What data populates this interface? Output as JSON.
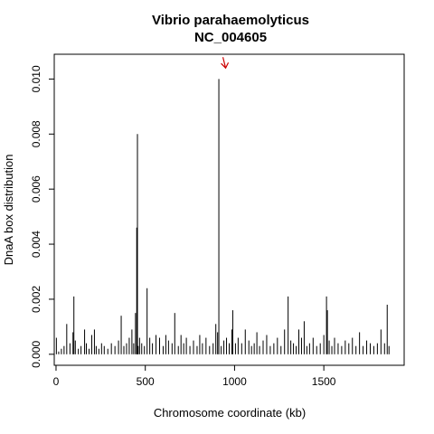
{
  "chart_data": {
    "type": "bar",
    "title": "Vibrio parahaemolyticus",
    "subtitle": "NC_004605",
    "xlabel": "Chromosome coordinate (kb)",
    "ylabel": "DnaA box distribution",
    "xlim": [
      -10,
      1950
    ],
    "ylim": [
      -0.0004,
      0.0109
    ],
    "x_ticks": [
      0,
      500,
      1000,
      1500
    ],
    "x_tick_labels": [
      "0",
      "500",
      "1000",
      "1500"
    ],
    "y_ticks": [
      0,
      0.002,
      0.004,
      0.006,
      0.008,
      0.01
    ],
    "y_tick_labels": [
      "0.000",
      "0.002",
      "0.004",
      "0.006",
      "0.008",
      "0.010"
    ],
    "bar_color": "#000000",
    "arrow_color": "#cc0000",
    "annotation": {
      "type": "arrow",
      "x": 950,
      "y": 0.0104,
      "direction": "down"
    },
    "grid": false,
    "legend": "none",
    "series": [
      {
        "x": [
          2,
          15,
          30,
          45,
          60,
          78,
          95,
          100,
          108,
          125,
          140,
          160,
          170,
          185,
          200,
          215,
          225,
          240,
          255,
          270,
          290,
          310,
          330,
          350,
          365,
          380,
          395,
          410,
          425,
          435,
          445,
          452,
          456,
          460,
          468,
          480,
          495,
          510,
          525,
          540,
          560,
          580,
          600,
          615,
          630,
          650,
          665,
          685,
          700,
          715,
          730,
          750,
          770,
          790,
          805,
          820,
          840,
          860,
          880,
          895,
          905,
          912,
          925,
          940,
          955,
          970,
          985,
          990,
          1005,
          1020,
          1040,
          1060,
          1080,
          1095,
          1110,
          1125,
          1140,
          1160,
          1180,
          1200,
          1220,
          1240,
          1260,
          1280,
          1300,
          1315,
          1330,
          1345,
          1360,
          1375,
          1390,
          1405,
          1420,
          1440,
          1460,
          1480,
          1500,
          1515,
          1520,
          1530,
          1545,
          1560,
          1580,
          1600,
          1620,
          1640,
          1660,
          1680,
          1700,
          1720,
          1740,
          1760,
          1780,
          1800,
          1820,
          1840,
          1855,
          1865
        ],
        "values": [
          0.0006,
          0.0001,
          0.0002,
          0.0003,
          0.0011,
          0.0004,
          0.0008,
          0.0021,
          0.0005,
          0.0002,
          0.0003,
          0.0009,
          0.0004,
          0.0002,
          0.0007,
          0.0009,
          0.0003,
          0.0002,
          0.0004,
          0.0003,
          0.0002,
          0.0004,
          0.0003,
          0.0005,
          0.0014,
          0.0003,
          0.0004,
          0.0006,
          0.0009,
          0.0004,
          0.0015,
          0.0046,
          0.008,
          0.0003,
          0.0006,
          0.0004,
          0.0003,
          0.0024,
          0.0006,
          0.0004,
          0.0007,
          0.0006,
          0.0003,
          0.0007,
          0.0005,
          0.0004,
          0.0015,
          0.0003,
          0.0007,
          0.0004,
          0.0006,
          0.0003,
          0.0005,
          0.0003,
          0.0007,
          0.0004,
          0.0006,
          0.0003,
          0.0004,
          0.0011,
          0.0008,
          0.01,
          0.0003,
          0.0005,
          0.0006,
          0.0004,
          0.0009,
          0.0016,
          0.0004,
          0.0006,
          0.0004,
          0.0009,
          0.0005,
          0.0003,
          0.0004,
          0.0008,
          0.0003,
          0.0005,
          0.0007,
          0.0003,
          0.0004,
          0.0006,
          0.0003,
          0.0009,
          0.0021,
          0.0005,
          0.0004,
          0.0003,
          0.0009,
          0.0006,
          0.0012,
          0.0003,
          0.0004,
          0.0006,
          0.0003,
          0.0004,
          0.0007,
          0.0021,
          0.0016,
          0.0005,
          0.0003,
          0.0006,
          0.0004,
          0.0003,
          0.0005,
          0.0004,
          0.0006,
          0.0003,
          0.0008,
          0.0003,
          0.0005,
          0.0004,
          0.0003,
          0.0004,
          0.0009,
          0.0004,
          0.0018,
          0.0003
        ]
      }
    ]
  }
}
